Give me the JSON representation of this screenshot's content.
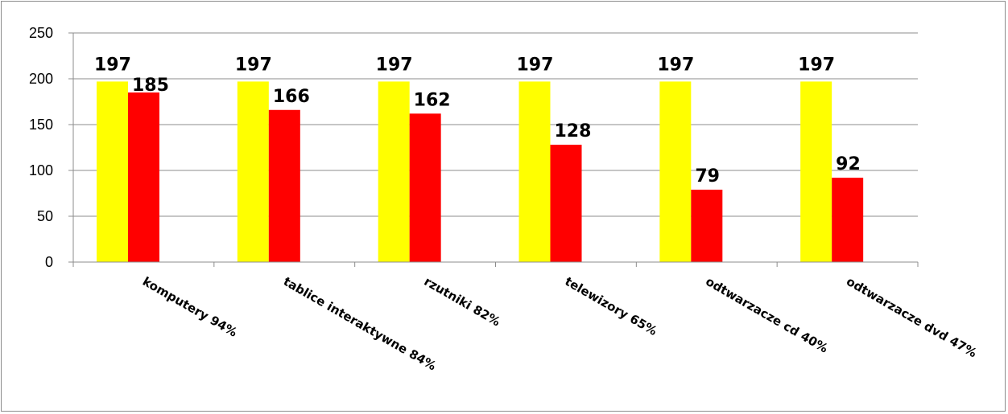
{
  "chart_data": {
    "type": "bar",
    "categories": [
      "komputery 94%",
      "tablice interaktywne 84%",
      "rzutniki 82%",
      "telewizory 65%",
      "odtwarzacze cd 40%",
      "odtwarzacze dvd 47%"
    ],
    "series": [
      {
        "values": [
          197,
          197,
          197,
          197,
          197,
          197
        ],
        "color": "#ffff00"
      },
      {
        "values": [
          185,
          166,
          162,
          128,
          79,
          92
        ],
        "color": "#ff0000"
      }
    ],
    "ylim": [
      0,
      250
    ],
    "yticks": [
      0,
      50,
      100,
      150,
      200,
      250
    ],
    "grid": true,
    "legend": "none"
  }
}
